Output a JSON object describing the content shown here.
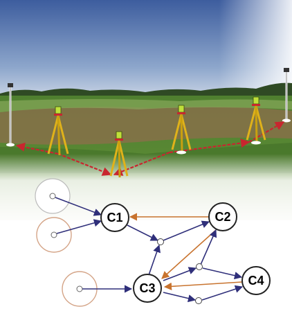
{
  "colors": {
    "sky_top": "#3f5f9f",
    "sky_bottom": "#aebfd8",
    "field_green": "#4e7f2e",
    "plowed_field": "#8d6e4c",
    "measurement_line": "#c8262f",
    "arrow_blue": "#2f2f7a",
    "arrow_orange": "#c8732e",
    "tripod_yellow": "#e0b21a",
    "instrument_green": "#bfe03a"
  },
  "diagram": {
    "nodes": [
      {
        "id": "C1",
        "label": "C1"
      },
      {
        "id": "C2",
        "label": "C2"
      },
      {
        "id": "C3",
        "label": "C3"
      },
      {
        "id": "C4",
        "label": "C4"
      }
    ],
    "known_points": 3,
    "intermediate_points": 3,
    "scene_icons": [
      "tripod-total-station-icon",
      "survey-pole-icon"
    ]
  }
}
